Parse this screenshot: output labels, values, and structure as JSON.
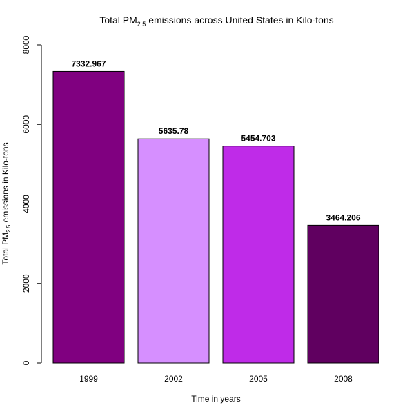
{
  "chart_data": {
    "type": "bar",
    "title": {
      "prefix": "Total PM",
      "subscript": "2.5",
      "suffix": " emissions across United States in Kilo-tons"
    },
    "xlabel": "Time in years",
    "ylabel": {
      "prefix": "Total PM",
      "subscript": "2.5",
      "suffix": " emissions in Kilo-tons"
    },
    "categories": [
      "1999",
      "2002",
      "2005",
      "2008"
    ],
    "values": [
      7332.967,
      5635.78,
      5454.703,
      3464.206
    ],
    "value_labels": [
      "7332.967",
      "5635.78",
      "5454.703",
      "3464.206"
    ],
    "bar_colors": [
      "#800080",
      "#d68fff",
      "#bf2be8",
      "#600060"
    ],
    "ylim": [
      0,
      8000
    ],
    "yticks": [
      0,
      2000,
      4000,
      6000,
      8000
    ],
    "ytick_labels": [
      "0",
      "2000",
      "4000",
      "6000",
      "8000"
    ],
    "grid": false,
    "legend": "none"
  }
}
